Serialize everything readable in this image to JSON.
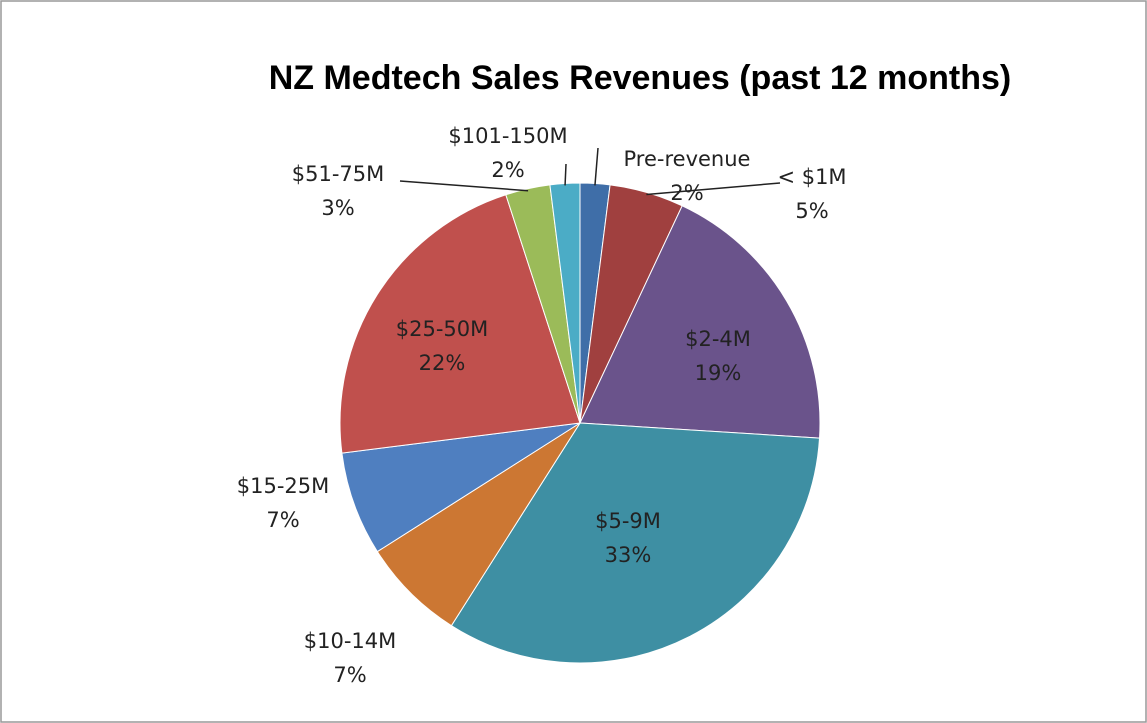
{
  "chart_data": {
    "type": "pie",
    "title": "NZ Medtech Sales Revenues (past 12 months)",
    "categories": [
      "Pre-revenue",
      "< $1M",
      "$2-4M",
      "$5-9M",
      "$10-14M",
      "$15-25M",
      "$25-50M",
      "$51-75M",
      "$101-150M"
    ],
    "values": [
      2,
      5,
      19,
      33,
      7,
      7,
      22,
      3,
      2
    ],
    "value_labels": [
      "2%",
      "5%",
      "19%",
      "33%",
      "7%",
      "7%",
      "22%",
      "3%",
      "2%"
    ],
    "colors": [
      "#3f6ea8",
      "#a0403f",
      "#6a538b",
      "#3e8fa3",
      "#cc7733",
      "#4f7fc0",
      "#c0504d",
      "#9bbb59",
      "#4bacc6"
    ]
  }
}
